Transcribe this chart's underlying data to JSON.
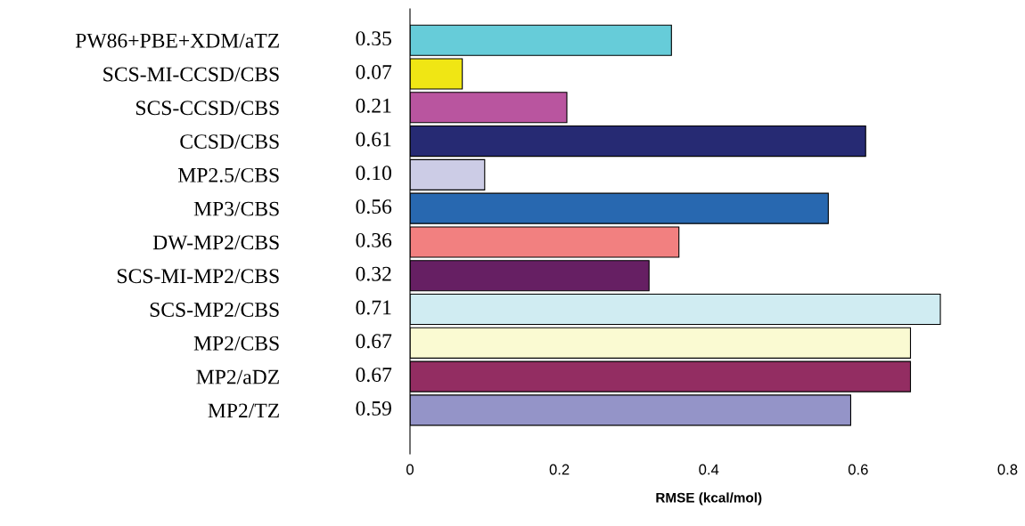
{
  "chart_data": {
    "type": "bar",
    "orientation": "horizontal",
    "xlabel": "RMSE (kcal/mol)",
    "categories": [
      "PW86+PBE+XDM/aTZ",
      "SCS-MI-CCSD/CBS",
      "SCS-CCSD/CBS",
      "CCSD/CBS",
      "MP2.5/CBS",
      "MP3/CBS",
      "DW-MP2/CBS",
      "SCS-MI-MP2/CBS",
      "SCS-MP2/CBS",
      "MP2/CBS",
      "MP2/aDZ",
      "MP2/TZ"
    ],
    "values": [
      0.35,
      0.07,
      0.21,
      0.61,
      0.1,
      0.56,
      0.36,
      0.32,
      0.71,
      0.67,
      0.67,
      0.59
    ],
    "value_labels": [
      "0.35",
      "0.07",
      "0.21",
      "0.61",
      "0.10",
      "0.56",
      "0.36",
      "0.32",
      "0.71",
      "0.67",
      "0.67",
      "0.59"
    ],
    "colors": [
      "#66ccd9",
      "#f0e614",
      "#b9559f",
      "#262a73",
      "#cccce6",
      "#2868b0",
      "#f28080",
      "#661f63",
      "#d0ecf2",
      "#fafad2",
      "#932d62",
      "#9494c8"
    ],
    "xlim": [
      0,
      0.8
    ],
    "xticks": [
      0,
      0.2,
      0.4,
      0.6,
      0.8
    ],
    "grid": false,
    "legend": false
  }
}
